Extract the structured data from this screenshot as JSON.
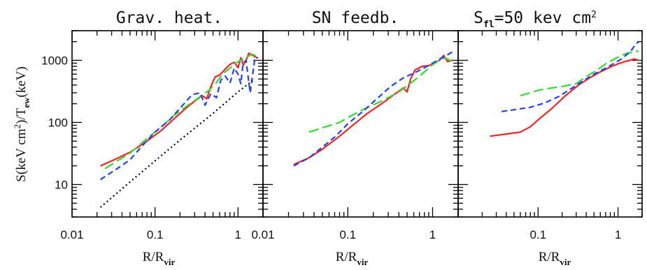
{
  "figure": {
    "ylabel": "S(keV cm²)/T_ew(keV)",
    "xlabel": "R/R_vir"
  },
  "chart_data": [
    {
      "type": "line",
      "title": "Grav. heat.",
      "xscale": "log",
      "yscale": "log",
      "xlim": [
        0.01,
        2
      ],
      "ylim": [
        3,
        3000
      ],
      "xticklabels": [
        "0.01",
        "0.1",
        "1"
      ],
      "yticklabels": [
        "10",
        "100",
        "1000"
      ],
      "xlabel": "R/R_vir",
      "series": [
        {
          "color": "#ff2020",
          "dash": "solid",
          "x": [
            0.022,
            0.03,
            0.05,
            0.08,
            0.12,
            0.17,
            0.23,
            0.3,
            0.37,
            0.42,
            0.47,
            0.53,
            0.6,
            0.7,
            0.8,
            0.9,
            1.0,
            1.08,
            1.16,
            1.25,
            1.35,
            1.5,
            1.7
          ],
          "y": [
            20,
            24,
            33,
            50,
            75,
            115,
            165,
            220,
            270,
            240,
            380,
            540,
            580,
            720,
            860,
            930,
            760,
            1100,
            840,
            1000,
            1300,
            1200,
            1100
          ]
        },
        {
          "color": "#30dd30",
          "dash": "longdash",
          "x": [
            0.025,
            0.035,
            0.05,
            0.08,
            0.12,
            0.17,
            0.25,
            0.35,
            0.45,
            0.55,
            0.65,
            0.75,
            0.9,
            1.0,
            1.15,
            1.3,
            1.5,
            1.7
          ],
          "y": [
            18,
            24,
            32,
            55,
            85,
            130,
            190,
            260,
            330,
            440,
            600,
            700,
            850,
            950,
            1050,
            1150,
            1250,
            1150
          ]
        },
        {
          "color": "#2040ff",
          "dash": "shortdash",
          "x": [
            0.022,
            0.035,
            0.05,
            0.07,
            0.1,
            0.15,
            0.2,
            0.28,
            0.35,
            0.4,
            0.47,
            0.55,
            0.62,
            0.7,
            0.8,
            0.9,
            1.0,
            1.08,
            1.15,
            1.25,
            1.4,
            1.6,
            1.75
          ],
          "y": [
            12,
            18,
            25,
            42,
            70,
            110,
            170,
            280,
            300,
            190,
            290,
            250,
            480,
            560,
            430,
            750,
            600,
            420,
            900,
            1000,
            300,
            1100,
            1100
          ]
        },
        {
          "color": "#000000",
          "dash": "dotted",
          "x": [
            0.022,
            0.05,
            0.1,
            0.2,
            0.5,
            1.0,
            1.5
          ],
          "y": [
            4.3,
            11,
            24,
            52,
            140,
            310,
            470
          ]
        }
      ]
    },
    {
      "type": "line",
      "title": "SN feedb.",
      "xscale": "log",
      "yscale": "log",
      "xlim": [
        0.01,
        2
      ],
      "ylim": [
        3,
        3000
      ],
      "xticklabels": [
        "0.01",
        "0.1",
        "1"
      ],
      "yticklabels": [],
      "xlabel": "R/R_vir",
      "series": [
        {
          "color": "#ff2020",
          "dash": "solid",
          "x": [
            0.023,
            0.035,
            0.05,
            0.08,
            0.12,
            0.17,
            0.25,
            0.35,
            0.45,
            0.5,
            0.55,
            0.62,
            0.75,
            0.9,
            1.05,
            1.2,
            1.35,
            1.5,
            1.7
          ],
          "y": [
            21,
            27,
            37,
            60,
            95,
            140,
            200,
            280,
            360,
            310,
            500,
            700,
            800,
            820,
            900,
            1000,
            1200,
            950,
            1000
          ]
        },
        {
          "color": "#30dd30",
          "dash": "longdash",
          "x": [
            0.035,
            0.05,
            0.08,
            0.1,
            0.15,
            0.25,
            0.4,
            0.6,
            0.8,
            1.0,
            1.2,
            1.4,
            1.6,
            1.8
          ],
          "y": [
            70,
            82,
            100,
            120,
            160,
            220,
            310,
            470,
            650,
            850,
            1000,
            1100,
            1000,
            1000
          ]
        },
        {
          "color": "#2040ff",
          "dash": "shortdash",
          "x": [
            0.023,
            0.035,
            0.05,
            0.07,
            0.1,
            0.15,
            0.22,
            0.32,
            0.45,
            0.6,
            0.8,
            1.0,
            1.2,
            1.4,
            1.6,
            1.8
          ],
          "y": [
            20,
            27,
            40,
            58,
            95,
            150,
            240,
            380,
            520,
            620,
            760,
            900,
            1050,
            1150,
            1300,
            1400
          ]
        }
      ]
    },
    {
      "type": "line",
      "title": "S_fl=50 kev cm²",
      "xscale": "log",
      "yscale": "log",
      "xlim": [
        0.01,
        2
      ],
      "ylim": [
        3,
        3000
      ],
      "xticklabels": [
        "0.1",
        "1"
      ],
      "yticklabels": [],
      "xlabel": "R/R_vir",
      "series": [
        {
          "color": "#ff2020",
          "dash": "solid",
          "x": [
            0.025,
            0.04,
            0.06,
            0.08,
            0.1,
            0.15,
            0.22,
            0.32,
            0.45,
            0.6,
            0.8,
            1.0,
            1.2,
            1.4,
            1.6,
            1.8
          ],
          "y": [
            60,
            65,
            70,
            85,
            110,
            170,
            270,
            400,
            530,
            650,
            780,
            880,
            950,
            1000,
            1050,
            1000
          ]
        },
        {
          "color": "#30dd30",
          "dash": "longdash",
          "x": [
            0.06,
            0.08,
            0.1,
            0.15,
            0.2,
            0.3,
            0.4,
            0.55,
            0.7,
            0.9,
            1.1,
            1.3,
            1.5,
            1.7,
            1.8
          ],
          "y": [
            270,
            300,
            330,
            360,
            380,
            420,
            550,
            700,
            880,
            1050,
            1200,
            1300,
            1350,
            1400,
            1400
          ]
        },
        {
          "color": "#2040ff",
          "dash": "shortdash",
          "x": [
            0.035,
            0.05,
            0.08,
            0.12,
            0.18,
            0.25,
            0.35,
            0.5,
            0.7,
            0.9,
            1.1,
            1.3,
            1.5,
            1.65,
            1.8
          ],
          "y": [
            150,
            160,
            175,
            205,
            260,
            340,
            450,
            600,
            750,
            900,
            1050,
            1250,
            1500,
            1800,
            2000
          ]
        }
      ]
    }
  ]
}
